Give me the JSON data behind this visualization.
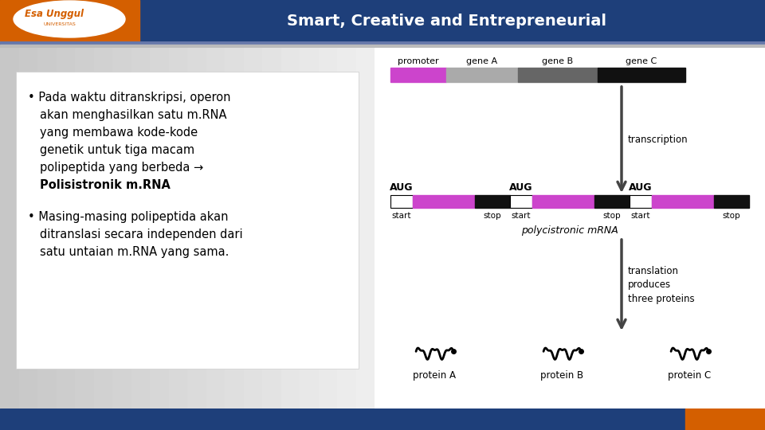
{
  "bg_color": "#d8d8d8",
  "header_bg": "#1e3f7a",
  "header_orange": "#d45f00",
  "header_text": "Smart, Creative and Entrepreneurial",
  "header_text_color": "#ffffff",
  "footer_blue": "#1e3f7a",
  "footer_orange": "#d45f00",
  "slide_bg": "#ffffff",
  "left_bg": "#c8c8c8",
  "box_bg": "#f5f5f5",
  "bullet1_lines": [
    "Pada waktu ditranskripsi, operon",
    "akan menghasilkan satu m.RNA",
    "yang membawa kode-kode",
    "genetik untuk tiga macam",
    "polipeptida yang berbeda →"
  ],
  "bullet1_bold_line": "Polisistronik m.RNA",
  "bullet2_lines": [
    "Masing-masing polipeptida akan",
    "ditranslasi secara independen dari",
    "satu untaian m.RNA yang sama."
  ],
  "promoter_color": "#cc44cc",
  "geneA_color": "#aaaaaa",
  "geneB_color": "#666666",
  "geneC_color": "#111111",
  "mrna_purple": "#cc44cc",
  "mrna_black": "#111111",
  "arrow_color": "#444444",
  "text_color": "#000000",
  "right_bg": "#ffffff"
}
